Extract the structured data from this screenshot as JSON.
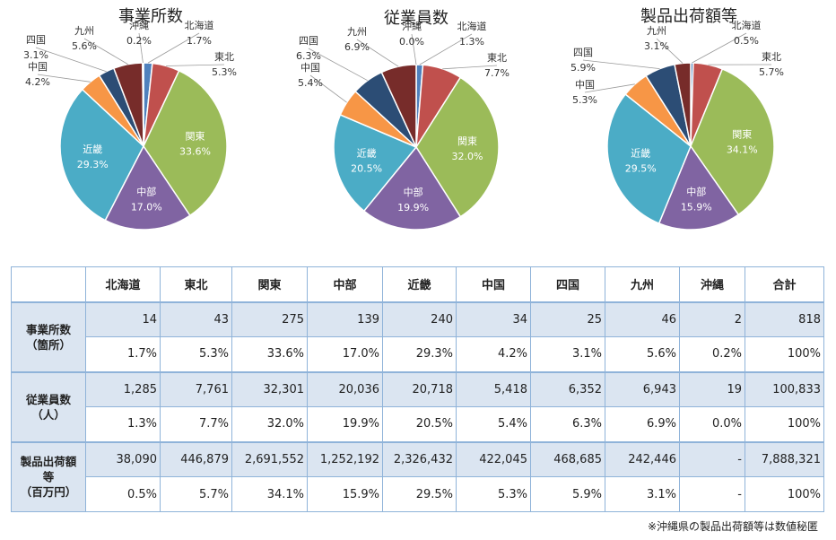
{
  "regions": [
    "北海道",
    "東北",
    "関東",
    "中部",
    "近畿",
    "中国",
    "四国",
    "九州",
    "沖縄",
    "合計"
  ],
  "colors": {
    "北海道": "#4f81bd",
    "東北": "#c0504d",
    "関東": "#9bbb59",
    "中部": "#8064a2",
    "近畿": "#4bacc6",
    "中国": "#f79646",
    "四国": "#2c4d75",
    "九州": "#772c2a",
    "沖縄": "#ffffff"
  },
  "chart_data": [
    {
      "type": "pie",
      "title": "事業所数",
      "categories": [
        "北海道",
        "東北",
        "関東",
        "中部",
        "近畿",
        "中国",
        "四国",
        "九州",
        "沖縄"
      ],
      "values": [
        1.7,
        5.3,
        33.6,
        17.0,
        29.3,
        4.2,
        3.1,
        5.6,
        0.2
      ],
      "labels": [
        "1.7%",
        "5.3%",
        "33.6%",
        "17.0%",
        "29.3%",
        "4.2%",
        "3.1%",
        "5.6%",
        "0.2%"
      ]
    },
    {
      "type": "pie",
      "title": "従業員数",
      "categories": [
        "北海道",
        "東北",
        "関東",
        "中部",
        "近畿",
        "中国",
        "四国",
        "九州",
        "沖縄"
      ],
      "values": [
        1.3,
        7.7,
        32.0,
        19.9,
        20.5,
        5.4,
        6.3,
        6.9,
        0.0
      ],
      "labels": [
        "1.3%",
        "7.7%",
        "32.0%",
        "19.9%",
        "20.5%",
        "5.4%",
        "6.3%",
        "6.9%",
        "0.0%"
      ]
    },
    {
      "type": "pie",
      "title": "製品出荷額等",
      "categories": [
        "北海道",
        "東北",
        "関東",
        "中部",
        "近畿",
        "中国",
        "四国",
        "九州"
      ],
      "values": [
        0.5,
        5.7,
        34.1,
        15.9,
        29.5,
        5.3,
        5.9,
        3.1
      ],
      "labels": [
        "0.5%",
        "5.7%",
        "34.1%",
        "15.9%",
        "29.5%",
        "5.3%",
        "5.9%",
        "3.1%"
      ]
    }
  ],
  "table": {
    "rows": [
      {
        "header": [
          "事業所数",
          "（箇所）"
        ],
        "counts": [
          "14",
          "43",
          "275",
          "139",
          "240",
          "34",
          "25",
          "46",
          "2",
          "818"
        ],
        "pcts": [
          "1.7%",
          "5.3%",
          "33.6%",
          "17.0%",
          "29.3%",
          "4.2%",
          "3.1%",
          "5.6%",
          "0.2%",
          "100%"
        ]
      },
      {
        "header": [
          "従業員数",
          "（人）"
        ],
        "counts": [
          "1,285",
          "7,761",
          "32,301",
          "20,036",
          "20,718",
          "5,418",
          "6,352",
          "6,943",
          "19",
          "100,833"
        ],
        "pcts": [
          "1.3%",
          "7.7%",
          "32.0%",
          "19.9%",
          "20.5%",
          "5.4%",
          "6.3%",
          "6.9%",
          "0.0%",
          "100%"
        ]
      },
      {
        "header": [
          "製品出荷額",
          "等",
          "（百万円）"
        ],
        "counts": [
          "38,090",
          "446,879",
          "2,691,552",
          "1,252,192",
          "2,326,432",
          "422,045",
          "468,685",
          "242,446",
          "-",
          "7,888,321"
        ],
        "pcts": [
          "0.5%",
          "5.7%",
          "34.1%",
          "15.9%",
          "29.5%",
          "5.3%",
          "5.9%",
          "3.1%",
          "-",
          "100%"
        ]
      }
    ]
  },
  "footnote": "※沖縄県の製品出荷額等は数値秘匿"
}
